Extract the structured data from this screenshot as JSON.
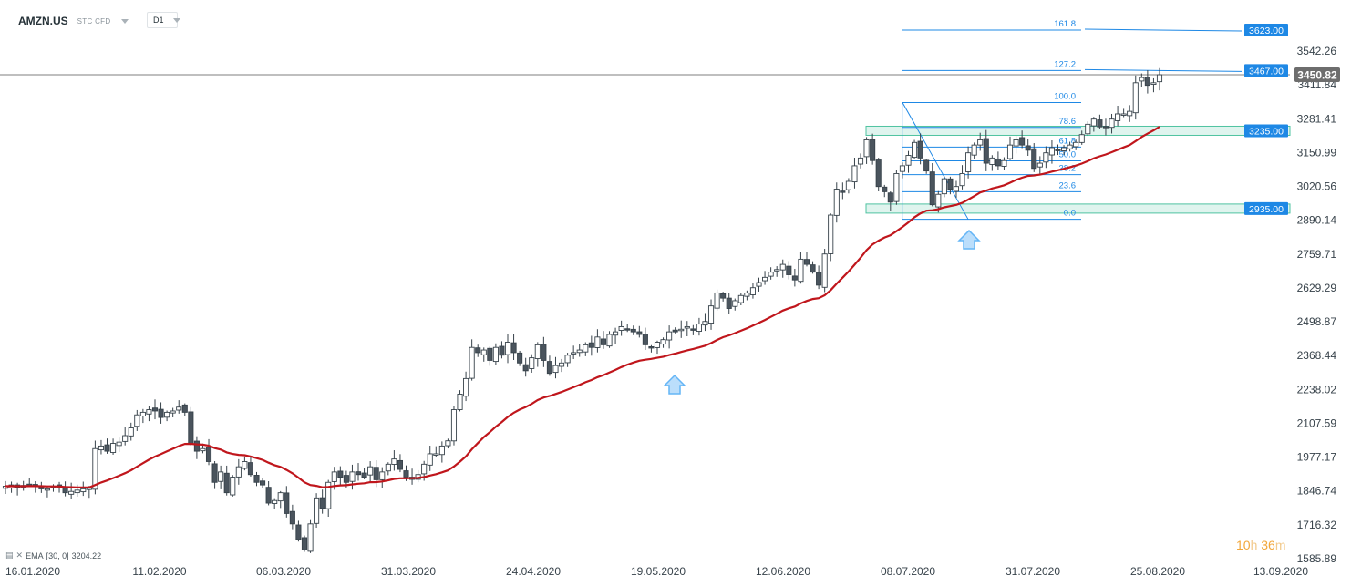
{
  "header": {
    "symbol": "AMZN.US",
    "instrument_type": "STC CFD",
    "timeframe": "D1"
  },
  "legend": {
    "indicator": "EMA",
    "params": "[30, 0]",
    "value": "3204.22"
  },
  "timer": {
    "hours": "10",
    "h_unit": "h",
    "minutes": "36",
    "m_unit": "m"
  },
  "colors": {
    "bull_body": "#ffffff",
    "bear_body": "#4a545d",
    "ema": "#c0161c",
    "fib": "#1e88e5",
    "zone": "#4fc3a1",
    "price_tag": "#1e88e5",
    "current_price_tag": "#6d6d6d",
    "arrow": "#64b5f6"
  },
  "chart_data": {
    "type": "candlestick",
    "y_ticks": [
      "3542.26",
      "3411.84",
      "3281.41",
      "3150.99",
      "3020.56",
      "2890.14",
      "2759.71",
      "2629.29",
      "2498.87",
      "2368.44",
      "2238.02",
      "2107.59",
      "1977.17",
      "1846.74",
      "1716.32",
      "1585.89"
    ],
    "x_ticks": [
      "16.01.2020",
      "11.02.2020",
      "06.03.2020",
      "31.03.2020",
      "24.04.2020",
      "19.05.2020",
      "12.06.2020",
      "08.07.2020",
      "31.07.2020",
      "25.08.2020",
      "13.09.2020"
    ],
    "current_price": "3450.82",
    "fib_levels": [
      {
        "label": "161.8",
        "price": 3623
      },
      {
        "label": "127.2",
        "price": 3467
      },
      {
        "label": "100.0",
        "price": 3344
      },
      {
        "label": "78.6",
        "price": 3248
      },
      {
        "label": "61.8",
        "price": 3172
      },
      {
        "label": "50.0",
        "price": 3119
      },
      {
        "label": "38.2",
        "price": 3066
      },
      {
        "label": "23.6",
        "price": 3000
      },
      {
        "label": "0.0",
        "price": 2894
      }
    ],
    "price_tags": [
      "3623.00",
      "3467.00",
      "3235.00",
      "2935.00"
    ],
    "zones": [
      3235,
      2935
    ],
    "close": [
      1865,
      1870,
      1860,
      1868,
      1872,
      1865,
      1860,
      1855,
      1862,
      1858,
      1840,
      1845,
      1850,
      1855,
      1858,
      2010,
      2020,
      2000,
      2030,
      2035,
      2060,
      2090,
      2140,
      2150,
      2160,
      2155,
      2130,
      2150,
      2155,
      2170,
      2150,
      2030,
      2000,
      2010,
      1960,
      1880,
      1920,
      1840,
      1900,
      1940,
      1960,
      1910,
      1880,
      1870,
      1800,
      1810,
      1840,
      1760,
      1720,
      1660,
      1620,
      1720,
      1820,
      1780,
      1880,
      1920,
      1900,
      1880,
      1920,
      1910,
      1900,
      1940,
      1890,
      1920,
      1950,
      1970,
      1930,
      1900,
      1900,
      1910,
      1950,
      1990,
      1990,
      2020,
      2040,
      2160,
      2220,
      2280,
      2400,
      2380,
      2390,
      2350,
      2400,
      2370,
      2420,
      2380,
      2340,
      2310,
      2360,
      2410,
      2350,
      2300,
      2330,
      2340,
      2370,
      2380,
      2390,
      2410,
      2400,
      2440,
      2410,
      2450,
      2460,
      2480,
      2470,
      2460,
      2450,
      2410,
      2400,
      2420,
      2430,
      2460,
      2460,
      2470,
      2480,
      2470,
      2490,
      2500,
      2560,
      2610,
      2590,
      2550,
      2580,
      2600,
      2610,
      2630,
      2650,
      2670,
      2690,
      2700,
      2720,
      2680,
      2660,
      2740,
      2720,
      2690,
      2640,
      2760,
      2910,
      3010,
      3000,
      3040,
      3100,
      3130,
      3200,
      3120,
      3020,
      3000,
      2960,
      3070,
      3100,
      3140,
      3190,
      3130,
      3080,
      2950,
      2990,
      3050,
      3010,
      3020,
      3070,
      3150,
      3180,
      3200,
      3110,
      3130,
      3100,
      3120,
      3180,
      3200,
      3180,
      3160,
      3090,
      3110,
      3150,
      3170,
      3160,
      3170,
      3180,
      3190,
      3220,
      3260,
      3280,
      3250,
      3250,
      3280,
      3300,
      3300,
      3310,
      3420,
      3440,
      3410,
      3420,
      3450.82
    ]
  }
}
